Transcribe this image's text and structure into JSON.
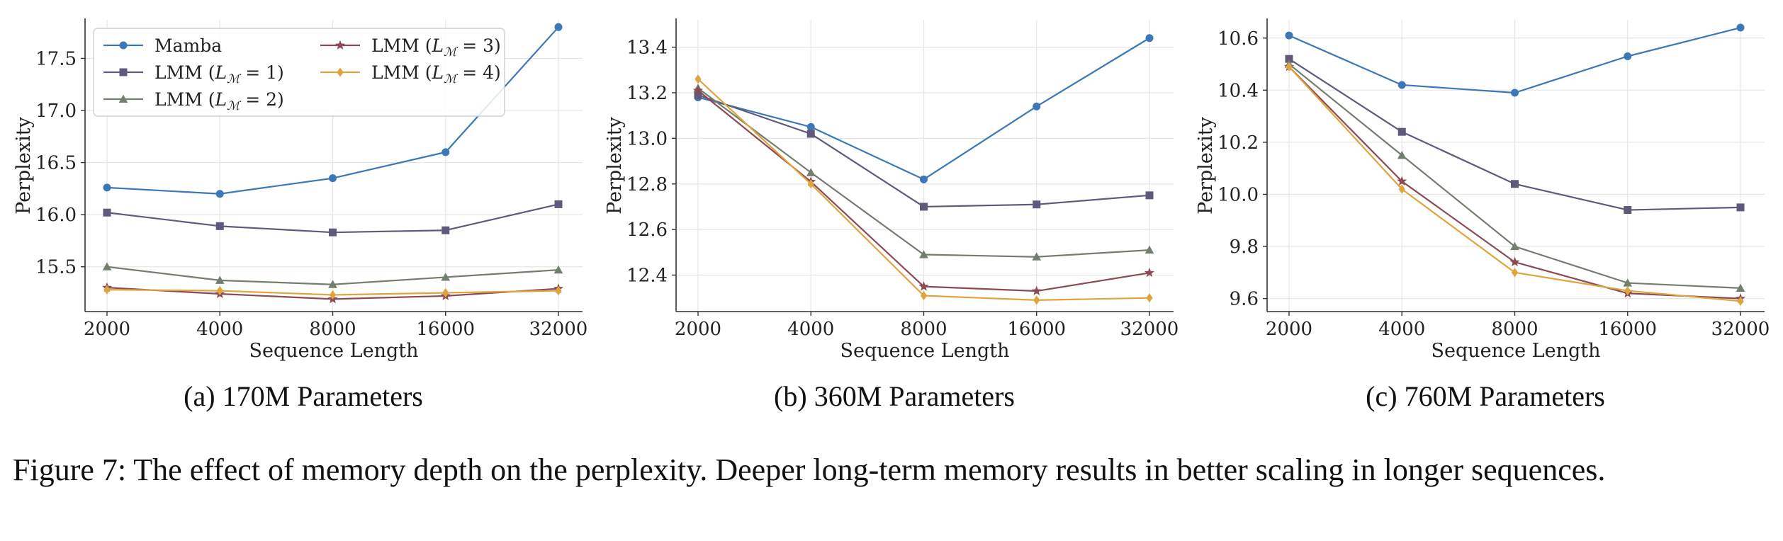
{
  "chart_data": [
    {
      "type": "line",
      "xscale": "log2",
      "x": [
        2000,
        4000,
        8000,
        16000,
        32000
      ],
      "xticks": [
        "2000",
        "4000",
        "8000",
        "16000",
        "32000"
      ],
      "xlabel": "Sequence Length",
      "ylabel": "Perplexity",
      "ylim": [
        15.07,
        17.87
      ],
      "yticks": [
        "15.5",
        "16.0",
        "16.5",
        "17.0",
        "17.5"
      ],
      "ytick_values": [
        15.5,
        16.0,
        16.5,
        17.0,
        17.5
      ],
      "grid": true,
      "legend": "top-left",
      "caption": "(a) 170M Parameters",
      "series": [
        {
          "name": "Mamba",
          "values": [
            16.26,
            16.2,
            16.35,
            16.6,
            17.8
          ]
        },
        {
          "name": "LMM (L_M = 1)",
          "values": [
            16.02,
            15.89,
            15.83,
            15.85,
            16.1
          ]
        },
        {
          "name": "LMM (L_M = 2)",
          "values": [
            15.5,
            15.37,
            15.33,
            15.4,
            15.47
          ]
        },
        {
          "name": "LMM (L_M = 3)",
          "values": [
            15.3,
            15.24,
            15.19,
            15.22,
            15.29
          ]
        },
        {
          "name": "LMM (L_M = 4)",
          "values": [
            15.28,
            15.27,
            15.23,
            15.25,
            15.27
          ]
        }
      ]
    },
    {
      "type": "line",
      "xscale": "log2",
      "x": [
        2000,
        4000,
        8000,
        16000,
        32000
      ],
      "xticks": [
        "2000",
        "4000",
        "8000",
        "16000",
        "32000"
      ],
      "xlabel": "Sequence Length",
      "ylabel": "Perplexity",
      "ylim": [
        12.24,
        13.52
      ],
      "yticks": [
        "12.4",
        "12.6",
        "12.8",
        "13.0",
        "13.2",
        "13.4"
      ],
      "ytick_values": [
        12.4,
        12.6,
        12.8,
        13.0,
        13.2,
        13.4
      ],
      "grid": true,
      "caption": "(b) 360M Parameters",
      "series": [
        {
          "name": "Mamba",
          "values": [
            13.18,
            13.05,
            12.82,
            13.14,
            13.44
          ]
        },
        {
          "name": "LMM (L_M = 1)",
          "values": [
            13.19,
            13.02,
            12.7,
            12.71,
            12.75
          ]
        },
        {
          "name": "LMM (L_M = 2)",
          "values": [
            13.22,
            12.85,
            12.49,
            12.48,
            12.51
          ]
        },
        {
          "name": "LMM (L_M = 3)",
          "values": [
            13.21,
            12.81,
            12.35,
            12.33,
            12.41
          ]
        },
        {
          "name": "LMM (L_M = 4)",
          "values": [
            13.26,
            12.8,
            12.31,
            12.29,
            12.3
          ]
        }
      ]
    },
    {
      "type": "line",
      "xscale": "log2",
      "x": [
        2000,
        4000,
        8000,
        16000,
        32000
      ],
      "xticks": [
        "2000",
        "4000",
        "8000",
        "16000",
        "32000"
      ],
      "xlabel": "Sequence Length",
      "ylabel": "Perplexity",
      "ylim": [
        9.55,
        10.67
      ],
      "yticks": [
        "9.6",
        "9.8",
        "10.0",
        "10.2",
        "10.4",
        "10.6"
      ],
      "ytick_values": [
        9.6,
        9.8,
        10.0,
        10.2,
        10.4,
        10.6
      ],
      "grid": true,
      "caption": "(c) 760M Parameters",
      "series": [
        {
          "name": "Mamba",
          "values": [
            10.61,
            10.42,
            10.39,
            10.53,
            10.64
          ]
        },
        {
          "name": "LMM (L_M = 1)",
          "values": [
            10.52,
            10.24,
            10.04,
            9.94,
            9.95
          ]
        },
        {
          "name": "LMM (L_M = 2)",
          "values": [
            10.5,
            10.15,
            9.8,
            9.66,
            9.64
          ]
        },
        {
          "name": "LMM (L_M = 3)",
          "values": [
            10.49,
            10.05,
            9.74,
            9.62,
            9.6
          ]
        },
        {
          "name": "LMM (L_M = 4)",
          "values": [
            10.49,
            10.02,
            9.7,
            9.63,
            9.59
          ]
        }
      ]
    }
  ],
  "series_style": [
    {
      "color": "#3b78b5",
      "marker": "circle"
    },
    {
      "color": "#5f5a7c",
      "marker": "square"
    },
    {
      "color": "#727f6e",
      "marker": "triangle"
    },
    {
      "color": "#8c4a55",
      "marker": "star"
    },
    {
      "color": "#e0a43c",
      "marker": "diamond"
    }
  ],
  "legend_labels": {
    "mamba": "Mamba",
    "lmm_prefix": "LMM (",
    "lmm_symbol_L": "L",
    "lmm_symbol_M": "ℳ",
    "depths": [
      "= 1)",
      "= 2)",
      "= 3)",
      "= 4)"
    ]
  },
  "figure_caption": "Figure 7: The effect of memory depth on the perplexity. Deeper long-term memory results in better scaling in longer sequences."
}
